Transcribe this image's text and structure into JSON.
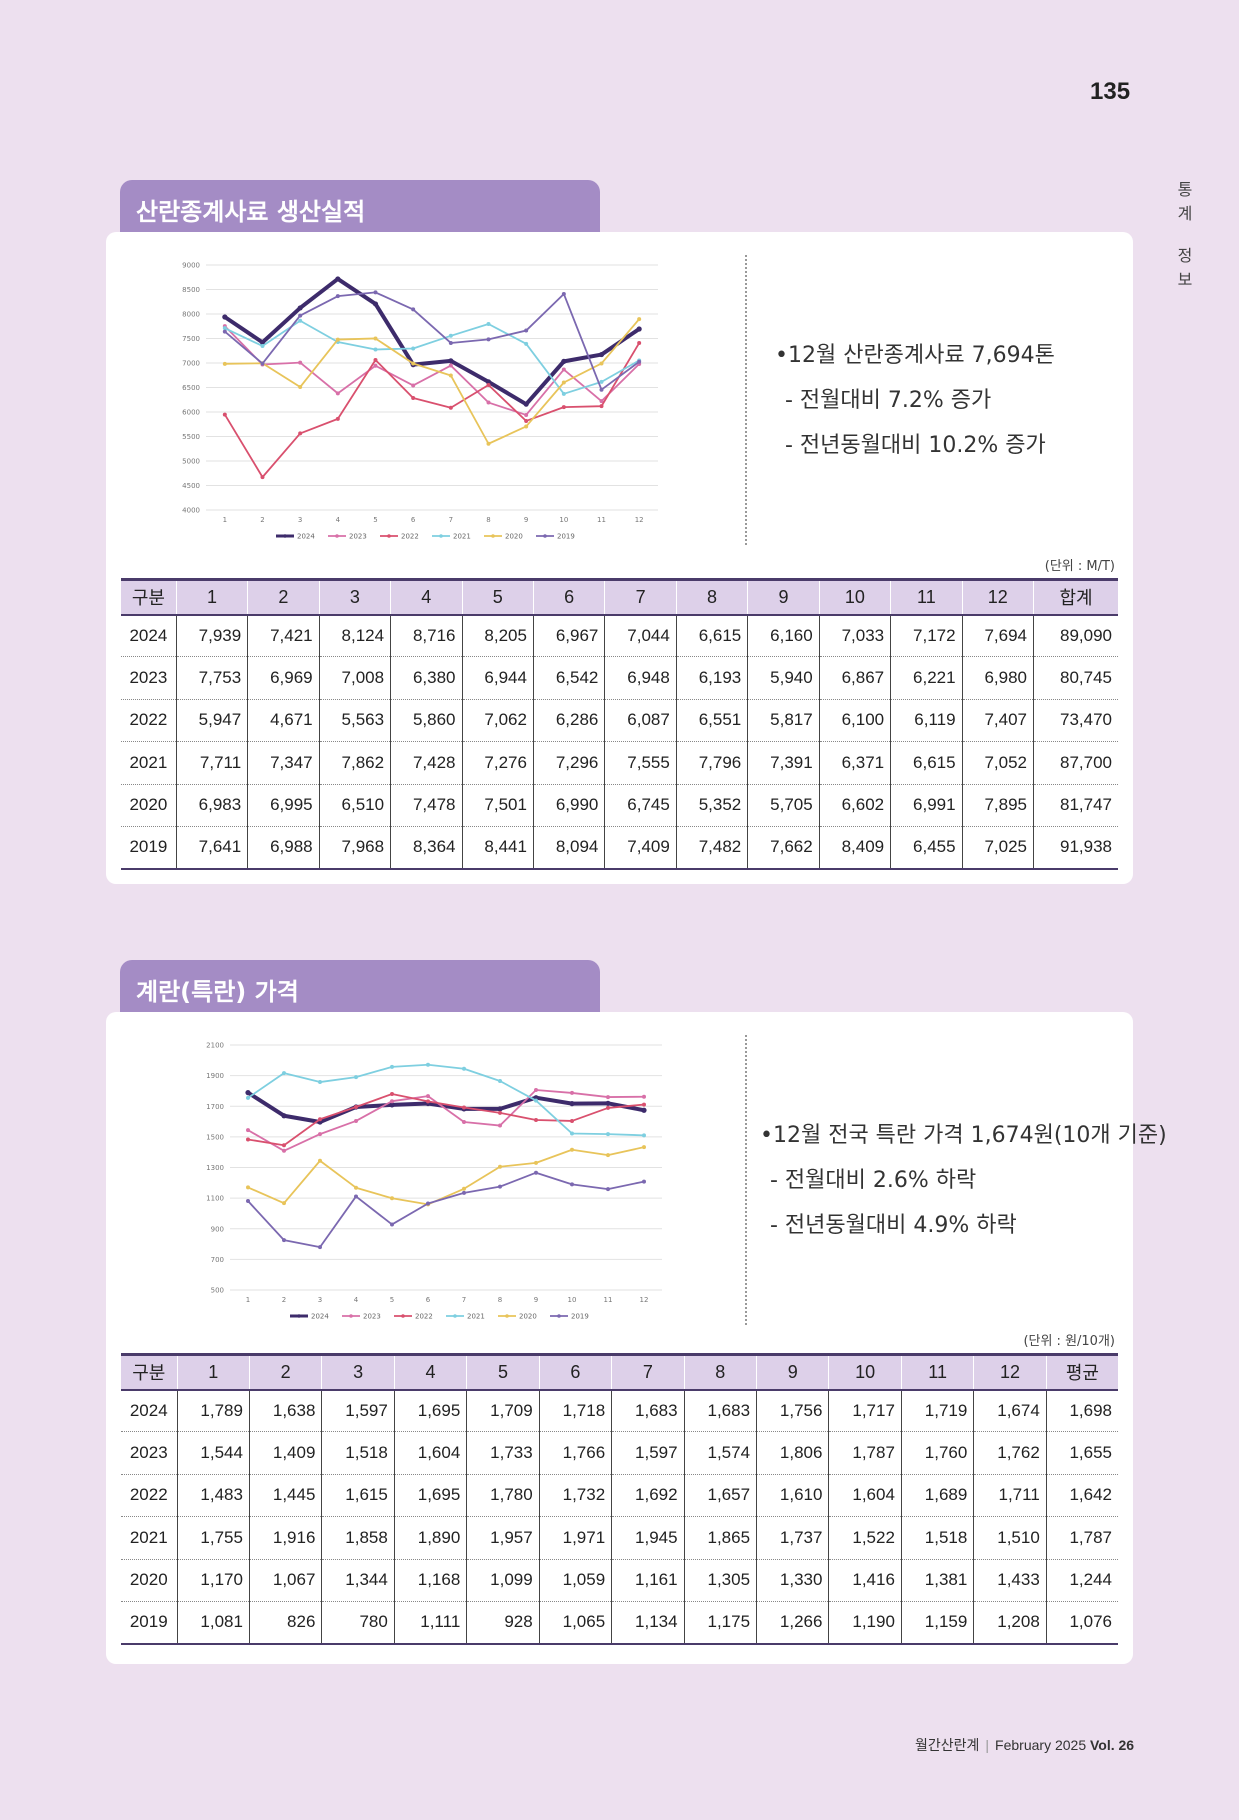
{
  "page_number": "135",
  "side_label": [
    "통",
    "계",
    "정",
    "보"
  ],
  "footer": {
    "magazine": "월간산란계",
    "month": "February 2025",
    "vol": "Vol. 26"
  },
  "sections": [
    {
      "title": "산란종계사료 생산실적",
      "summary": {
        "main": "•12월 산란종계사료 7,694톤",
        "sub1": "- 전월대비 7.2% 증가",
        "sub2": "- 전년동월대비 10.2% 증가"
      },
      "unit": "(단위 : M/T)",
      "table_headers": [
        "구분",
        "1",
        "2",
        "3",
        "4",
        "5",
        "6",
        "7",
        "8",
        "9",
        "10",
        "11",
        "12",
        "합계"
      ],
      "table_rows": [
        [
          "2024",
          "7,939",
          "7,421",
          "8,124",
          "8,716",
          "8,205",
          "6,967",
          "7,044",
          "6,615",
          "6,160",
          "7,033",
          "7,172",
          "7,694",
          "89,090"
        ],
        [
          "2023",
          "7,753",
          "6,969",
          "7,008",
          "6,380",
          "6,944",
          "6,542",
          "6,948",
          "6,193",
          "5,940",
          "6,867",
          "6,221",
          "6,980",
          "80,745"
        ],
        [
          "2022",
          "5,947",
          "4,671",
          "5,563",
          "5,860",
          "7,062",
          "6,286",
          "6,087",
          "6,551",
          "5,817",
          "6,100",
          "6,119",
          "7,407",
          "73,470"
        ],
        [
          "2021",
          "7,711",
          "7,347",
          "7,862",
          "7,428",
          "7,276",
          "7,296",
          "7,555",
          "7,796",
          "7,391",
          "6,371",
          "6,615",
          "7,052",
          "87,700"
        ],
        [
          "2020",
          "6,983",
          "6,995",
          "6,510",
          "7,478",
          "7,501",
          "6,990",
          "6,745",
          "5,352",
          "5,705",
          "6,602",
          "6,991",
          "7,895",
          "81,747"
        ],
        [
          "2019",
          "7,641",
          "6,988",
          "7,968",
          "8,364",
          "8,441",
          "8,094",
          "7,409",
          "7,482",
          "7,662",
          "8,409",
          "6,455",
          "7,025",
          "91,938"
        ]
      ]
    },
    {
      "title": "계란(특란) 가격",
      "summary": {
        "main": "•12월 전국 특란 가격 1,674원(10개 기준)",
        "sub1": "- 전월대비 2.6% 하락",
        "sub2": "- 전년동월대비 4.9% 하락"
      },
      "unit": "(단위 : 원/10개)",
      "table_headers": [
        "구분",
        "1",
        "2",
        "3",
        "4",
        "5",
        "6",
        "7",
        "8",
        "9",
        "10",
        "11",
        "12",
        "평균"
      ],
      "table_rows": [
        [
          "2024",
          "1,789",
          "1,638",
          "1,597",
          "1,695",
          "1,709",
          "1,718",
          "1,683",
          "1,683",
          "1,756",
          "1,717",
          "1,719",
          "1,674",
          "1,698"
        ],
        [
          "2023",
          "1,544",
          "1,409",
          "1,518",
          "1,604",
          "1,733",
          "1,766",
          "1,597",
          "1,574",
          "1,806",
          "1,787",
          "1,760",
          "1,762",
          "1,655"
        ],
        [
          "2022",
          "1,483",
          "1,445",
          "1,615",
          "1,695",
          "1,780",
          "1,732",
          "1,692",
          "1,657",
          "1,610",
          "1,604",
          "1,689",
          "1,711",
          "1,642"
        ],
        [
          "2021",
          "1,755",
          "1,916",
          "1,858",
          "1,890",
          "1,957",
          "1,971",
          "1,945",
          "1,865",
          "1,737",
          "1,522",
          "1,518",
          "1,510",
          "1,787"
        ],
        [
          "2020",
          "1,170",
          "1,067",
          "1,344",
          "1,168",
          "1,099",
          "1,059",
          "1,161",
          "1,305",
          "1,330",
          "1,416",
          "1,381",
          "1,433",
          "1,244"
        ],
        [
          "2019",
          "1,081",
          "826",
          "780",
          "1,111",
          "928",
          "1,065",
          "1,134",
          "1,175",
          "1,266",
          "1,190",
          "1,159",
          "1,208",
          "1,076"
        ]
      ]
    }
  ],
  "chart_data": [
    {
      "type": "line",
      "x": [
        1,
        2,
        3,
        4,
        5,
        6,
        7,
        8,
        9,
        10,
        11,
        12
      ],
      "ylim": [
        4000,
        9000
      ],
      "yticks": [
        4000,
        4500,
        5000,
        5500,
        6000,
        6500,
        7000,
        7500,
        8000,
        8500,
        9000
      ],
      "grid": true,
      "legend_position": "bottom",
      "series": [
        {
          "name": "2024",
          "color": "#3d2b6b",
          "values": [
            7939,
            7421,
            8124,
            8716,
            8205,
            6967,
            7044,
            6615,
            6160,
            7033,
            7172,
            7694
          ]
        },
        {
          "name": "2023",
          "color": "#d870a8",
          "values": [
            7753,
            6969,
            7008,
            6380,
            6944,
            6542,
            6948,
            6193,
            5940,
            6867,
            6221,
            6980
          ]
        },
        {
          "name": "2022",
          "color": "#d9506e",
          "values": [
            5947,
            4671,
            5563,
            5860,
            7062,
            6286,
            6087,
            6551,
            5817,
            6100,
            6119,
            7407
          ]
        },
        {
          "name": "2021",
          "color": "#7ecfe0",
          "values": [
            7711,
            7347,
            7862,
            7428,
            7276,
            7296,
            7555,
            7796,
            7391,
            6371,
            6615,
            7052
          ]
        },
        {
          "name": "2020",
          "color": "#e8c45a",
          "values": [
            6983,
            6995,
            6510,
            7478,
            7501,
            6990,
            6745,
            5352,
            5705,
            6602,
            6991,
            7895
          ]
        },
        {
          "name": "2019",
          "color": "#7b68b0",
          "values": [
            7641,
            6988,
            7968,
            8364,
            8441,
            8094,
            7409,
            7482,
            7662,
            8409,
            6455,
            7025
          ]
        }
      ]
    },
    {
      "type": "line",
      "x": [
        1,
        2,
        3,
        4,
        5,
        6,
        7,
        8,
        9,
        10,
        11,
        12
      ],
      "ylim": [
        500,
        2100
      ],
      "yticks": [
        500,
        700,
        900,
        1100,
        1300,
        1500,
        1700,
        1900,
        2100
      ],
      "grid": true,
      "legend_position": "bottom",
      "series": [
        {
          "name": "2024",
          "color": "#3d2b6b",
          "values": [
            1789,
            1638,
            1597,
            1695,
            1709,
            1718,
            1683,
            1683,
            1756,
            1717,
            1719,
            1674
          ]
        },
        {
          "name": "2023",
          "color": "#d870a8",
          "values": [
            1544,
            1409,
            1518,
            1604,
            1733,
            1766,
            1597,
            1574,
            1806,
            1787,
            1760,
            1762
          ]
        },
        {
          "name": "2022",
          "color": "#d9506e",
          "values": [
            1483,
            1445,
            1615,
            1695,
            1780,
            1732,
            1692,
            1657,
            1610,
            1604,
            1689,
            1711
          ]
        },
        {
          "name": "2021",
          "color": "#7ecfe0",
          "values": [
            1755,
            1916,
            1858,
            1890,
            1957,
            1971,
            1945,
            1865,
            1737,
            1522,
            1518,
            1510
          ]
        },
        {
          "name": "2020",
          "color": "#e8c45a",
          "values": [
            1170,
            1067,
            1344,
            1168,
            1099,
            1059,
            1161,
            1305,
            1330,
            1416,
            1381,
            1433
          ]
        },
        {
          "name": "2019",
          "color": "#7b68b0",
          "values": [
            1081,
            826,
            780,
            1111,
            928,
            1065,
            1134,
            1175,
            1266,
            1190,
            1159,
            1208
          ]
        }
      ]
    }
  ]
}
